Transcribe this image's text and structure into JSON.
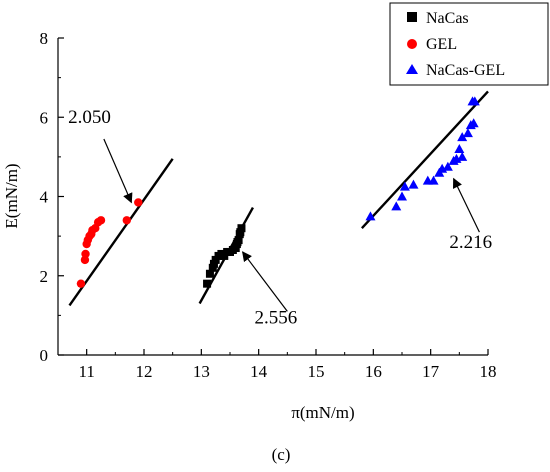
{
  "chart_data": {
    "type": "scatter",
    "xlabel": "π(mN/m)",
    "ylabel": "E(mN/m)",
    "xlim": [
      10.5,
      18
    ],
    "ylim": [
      0,
      8
    ],
    "xticks": [
      "11",
      "12",
      "13",
      "14",
      "15",
      "16",
      "17",
      "18"
    ],
    "yticks": [
      "0",
      "2",
      "4",
      "6",
      "8"
    ],
    "legend_position": "top-right",
    "caption": "(c)",
    "series": [
      {
        "name": "NaCas",
        "marker": "square",
        "color": "#000000",
        "points": [
          [
            13.1,
            1.8
          ],
          [
            13.15,
            2.05
          ],
          [
            13.2,
            2.2
          ],
          [
            13.22,
            2.3
          ],
          [
            13.25,
            2.4
          ],
          [
            13.3,
            2.5
          ],
          [
            13.35,
            2.55
          ],
          [
            13.4,
            2.5
          ],
          [
            13.45,
            2.6
          ],
          [
            13.5,
            2.6
          ],
          [
            13.55,
            2.65
          ],
          [
            13.6,
            2.7
          ],
          [
            13.62,
            2.8
          ],
          [
            13.65,
            2.9
          ],
          [
            13.67,
            3.05
          ],
          [
            13.7,
            3.2
          ],
          [
            13.68,
            3.1
          ],
          [
            13.63,
            2.85
          ]
        ]
      },
      {
        "name": "GEL",
        "marker": "circle",
        "color": "#ff0000",
        "points": [
          [
            10.9,
            1.8
          ],
          [
            10.97,
            2.4
          ],
          [
            10.98,
            2.55
          ],
          [
            11.0,
            2.8
          ],
          [
            11.02,
            2.9
          ],
          [
            11.05,
            3.0
          ],
          [
            11.08,
            3.05
          ],
          [
            11.1,
            3.15
          ],
          [
            11.15,
            3.2
          ],
          [
            11.2,
            3.35
          ],
          [
            11.25,
            3.4
          ],
          [
            11.7,
            3.4
          ],
          [
            11.9,
            3.85
          ]
        ]
      },
      {
        "name": "NaCas-GEL",
        "marker": "triangle",
        "color": "#0000ff",
        "points": [
          [
            15.95,
            3.5
          ],
          [
            16.4,
            3.75
          ],
          [
            16.5,
            4.0
          ],
          [
            16.55,
            4.25
          ],
          [
            16.7,
            4.3
          ],
          [
            16.95,
            4.4
          ],
          [
            17.05,
            4.4
          ],
          [
            17.15,
            4.6
          ],
          [
            17.2,
            4.7
          ],
          [
            17.3,
            4.75
          ],
          [
            17.4,
            4.9
          ],
          [
            17.45,
            4.95
          ],
          [
            17.5,
            5.2
          ],
          [
            17.55,
            5.0
          ],
          [
            17.55,
            5.5
          ],
          [
            17.65,
            5.6
          ],
          [
            17.7,
            5.8
          ],
          [
            17.75,
            5.85
          ],
          [
            17.73,
            6.4
          ],
          [
            17.77,
            6.4
          ]
        ]
      }
    ],
    "fit_lines": [
      {
        "from": [
          10.7,
          1.25
        ],
        "to": [
          12.5,
          4.95
        ]
      },
      {
        "from": [
          12.97,
          1.3
        ],
        "to": [
          13.9,
          3.72
        ]
      },
      {
        "from": [
          15.8,
          3.2
        ],
        "to": [
          18.0,
          6.65
        ]
      }
    ],
    "annotations": [
      {
        "text": "2.050",
        "text_at": [
          11.05,
          5.85
        ],
        "arrow_from": [
          11.3,
          5.45
        ],
        "arrow_to": [
          11.78,
          3.85
        ]
      },
      {
        "text": "2.556",
        "text_at": [
          14.3,
          0.8
        ],
        "arrow_from": [
          14.5,
          1.1
        ],
        "arrow_to": [
          13.72,
          2.6
        ]
      },
      {
        "text": "2.216",
        "text_at": [
          17.7,
          2.7
        ],
        "arrow_from": [
          17.85,
          3.1
        ],
        "arrow_to": [
          17.4,
          4.45
        ]
      }
    ]
  }
}
